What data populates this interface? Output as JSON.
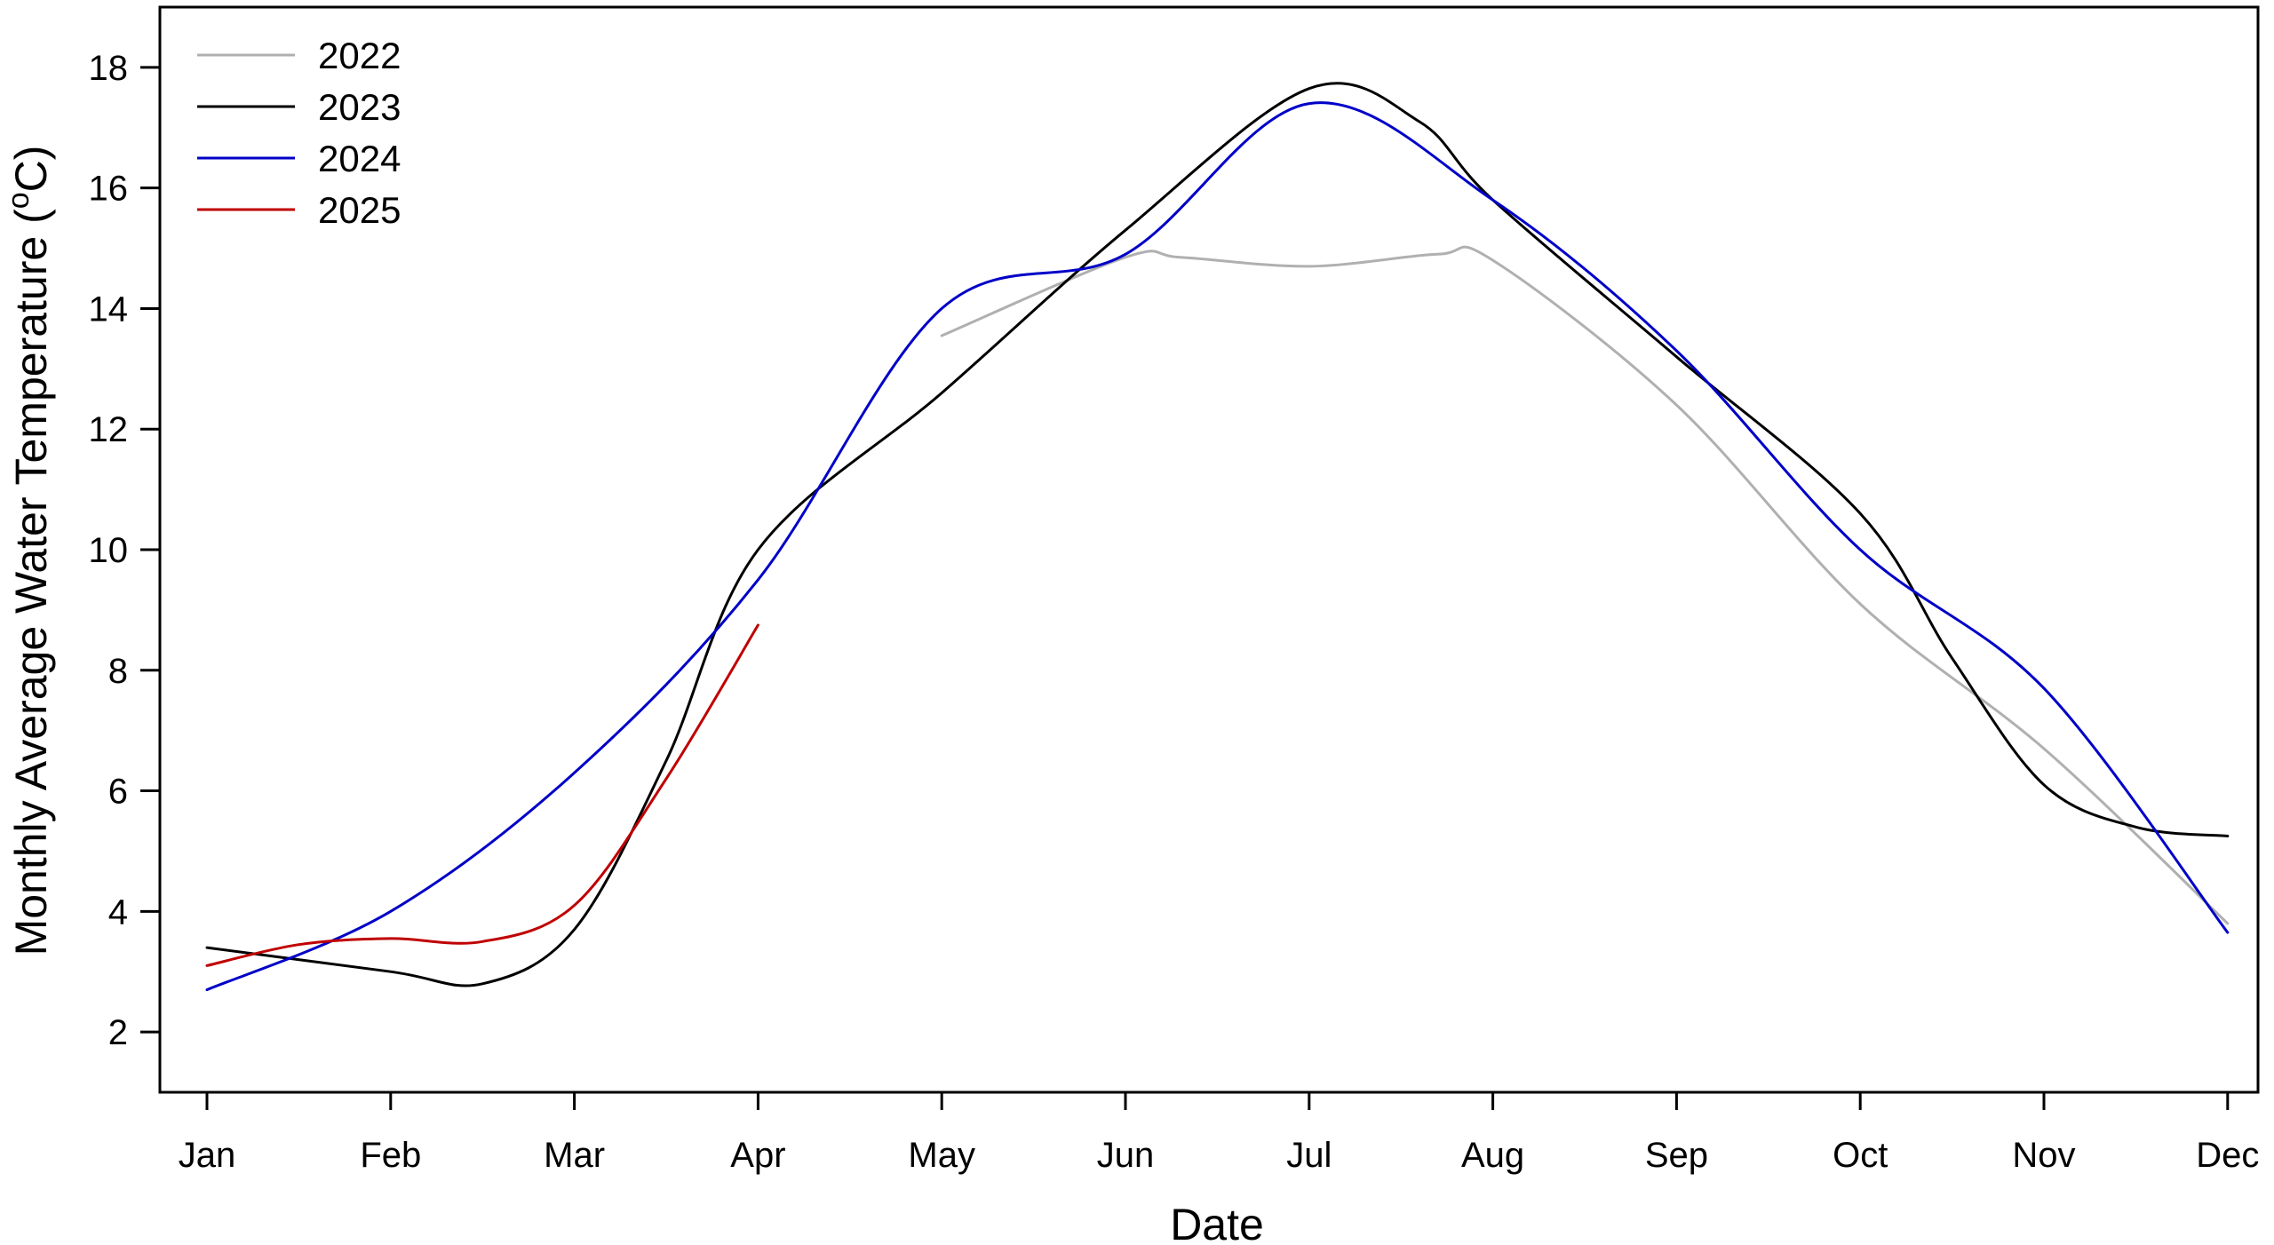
{
  "chart_data": {
    "type": "line",
    "xlabel": "Date",
    "ylabel": "Monthly Average Water Temperature (°C)",
    "ylabel_parts": [
      "Monthly Average Water Temperature (",
      "o",
      "C)"
    ],
    "categories": [
      "Jan",
      "Feb",
      "Mar",
      "Apr",
      "May",
      "Jun",
      "Jul",
      "Aug",
      "Sep",
      "Oct",
      "Nov",
      "Dec"
    ],
    "ylim": [
      1,
      19
    ],
    "yticks": [
      "2",
      "4",
      "6",
      "8",
      "10",
      "12",
      "14",
      "16",
      "18"
    ],
    "grid": false,
    "legend_position": "top-left",
    "series": [
      {
        "name": "2022",
        "color": "#b0b0b0",
        "x": [
          5,
          6,
          6.3,
          7,
          7.7,
          8,
          9,
          10,
          11,
          12
        ],
        "y": [
          13.55,
          14.85,
          14.85,
          14.7,
          14.9,
          14.8,
          12.4,
          9.1,
          6.7,
          3.8
        ]
      },
      {
        "name": "2023",
        "color": "#000000",
        "x": [
          1,
          2,
          2.5,
          3,
          3.5,
          4,
          5,
          6,
          7,
          7.6,
          8,
          9,
          10,
          10.5,
          11,
          11.5,
          12
        ],
        "y": [
          3.4,
          3.0,
          2.8,
          3.7,
          6.5,
          10.0,
          12.6,
          15.3,
          17.65,
          17.1,
          15.8,
          13.2,
          10.6,
          8.2,
          6.1,
          5.4,
          5.25
        ]
      },
      {
        "name": "2024",
        "color": "#0000c8",
        "x": [
          1,
          2,
          3,
          4,
          5,
          6,
          7,
          8,
          9,
          10,
          11,
          12
        ],
        "y": [
          2.7,
          4.0,
          6.3,
          9.5,
          14.0,
          14.9,
          17.4,
          15.8,
          13.3,
          10.0,
          7.7,
          3.65
        ]
      },
      {
        "name": "2025",
        "color": "#c00000",
        "x": [
          1,
          1.5,
          2,
          2.5,
          3,
          3.5,
          4
        ],
        "y": [
          3.1,
          3.45,
          3.55,
          3.5,
          4.1,
          6.2,
          8.75
        ]
      }
    ]
  }
}
